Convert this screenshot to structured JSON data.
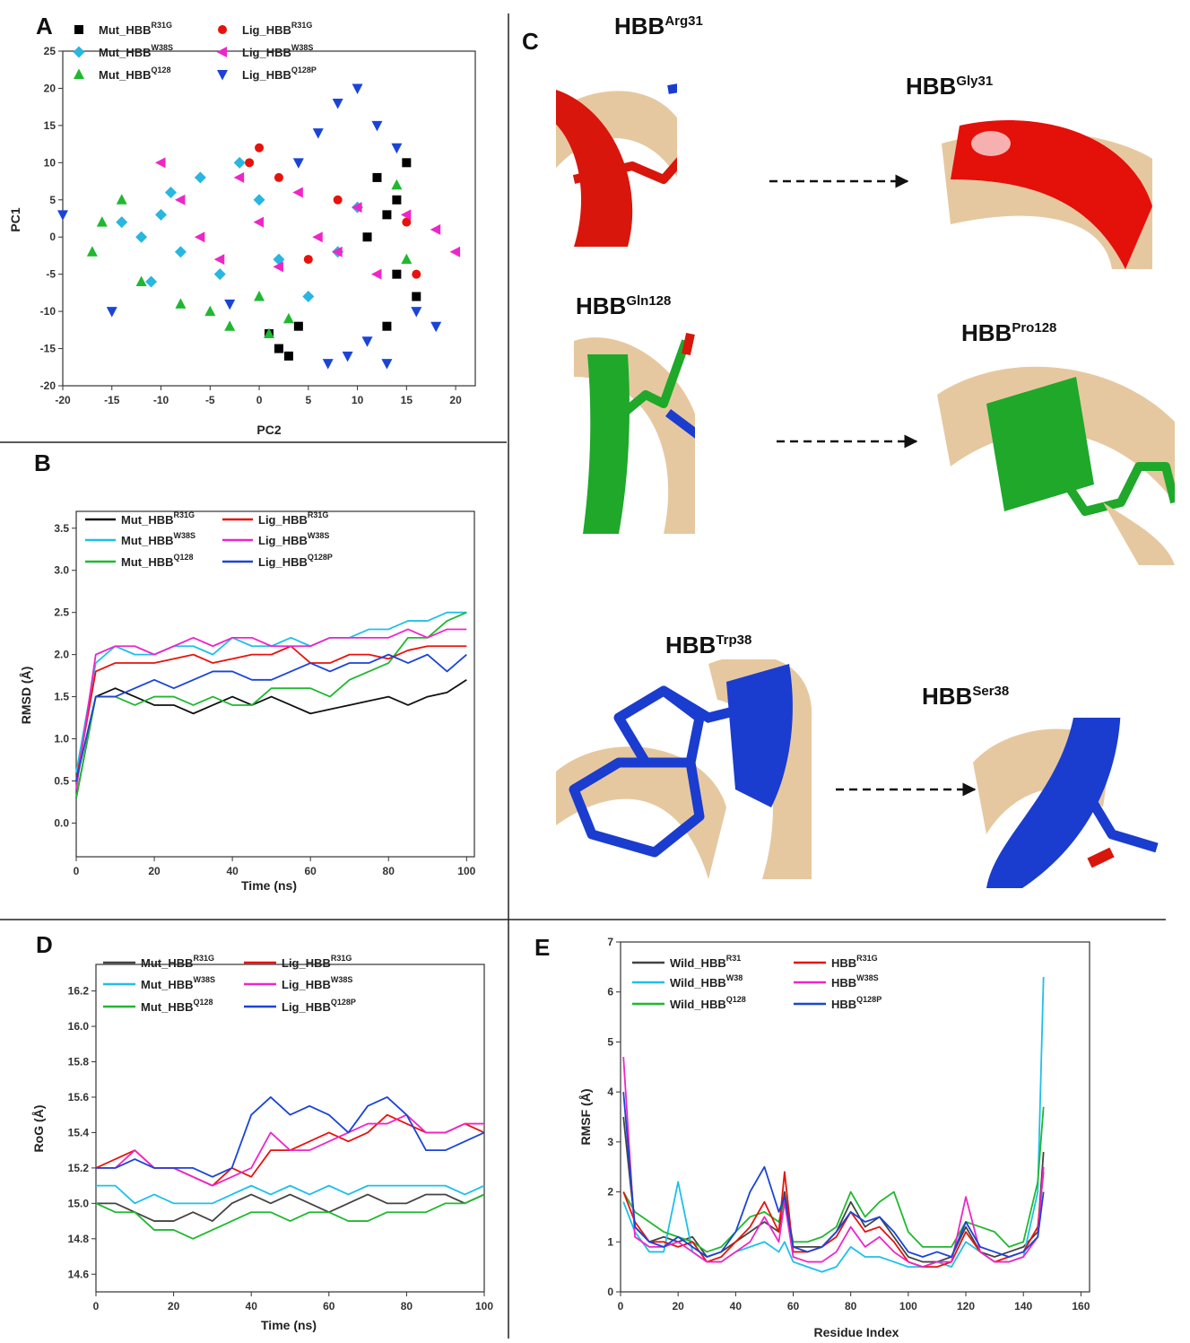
{
  "chart_data": [
    {
      "type": "scatter",
      "panel_label": "A",
      "x_label": "PC2",
      "y_label": "PC1",
      "xlim": [
        -20,
        22
      ],
      "ylim": [
        -20,
        25
      ],
      "xticks": [
        -20,
        -15,
        -10,
        -5,
        0,
        5,
        10,
        15,
        20
      ],
      "yticks": [
        -20,
        -15,
        -10,
        -5,
        0,
        5,
        10,
        15,
        20,
        25
      ],
      "series": [
        {
          "name": "Mut_HBB",
          "name_sup": "R31G",
          "color": "#000000",
          "marker": "square",
          "x": [
            12,
            14,
            15,
            13,
            16,
            2,
            3,
            1,
            4,
            13,
            11,
            14
          ],
          "values": [
            8,
            5,
            10,
            -12,
            -8,
            -15,
            -16,
            -13,
            -12,
            3,
            0,
            -5
          ]
        },
        {
          "name": "Mut_HBB",
          "name_sup": "W38S",
          "color": "#29b6e0",
          "marker": "diamond",
          "x": [
            -12,
            -10,
            -8,
            -14,
            -6,
            -4,
            -2,
            0,
            2,
            5,
            8,
            10,
            -11,
            -9
          ],
          "values": [
            0,
            3,
            -2,
            2,
            8,
            -5,
            10,
            5,
            -3,
            -8,
            -2,
            4,
            -6,
            6
          ]
        },
        {
          "name": "Mut_HBB",
          "name_sup": "Q128",
          "color": "#1fb830",
          "marker": "triangle-up",
          "x": [
            -16,
            -14,
            -17,
            -5,
            -3,
            0,
            3,
            1,
            14,
            15,
            -12,
            -8
          ],
          "values": [
            2,
            5,
            -2,
            -10,
            -12,
            -8,
            -11,
            -13,
            7,
            -3,
            -6,
            -9
          ]
        },
        {
          "name": "Lig_HBB",
          "name_sup": "R31G",
          "color": "#e8120c",
          "marker": "circle",
          "x": [
            0,
            -1,
            2,
            15,
            16,
            5,
            8
          ],
          "values": [
            12,
            10,
            8,
            2,
            -5,
            -3,
            5
          ]
        },
        {
          "name": "Lig_HBB",
          "name_sup": "W38S",
          "color": "#ee26c8",
          "marker": "triangle-left",
          "x": [
            -8,
            -6,
            -4,
            -2,
            0,
            2,
            4,
            6,
            8,
            10,
            12,
            15,
            18,
            20,
            -10
          ],
          "values": [
            5,
            0,
            -3,
            8,
            2,
            -4,
            6,
            0,
            -2,
            4,
            -5,
            3,
            1,
            -2,
            10
          ]
        },
        {
          "name": "Lig_HBB",
          "name_sup": "Q128P",
          "color": "#1a44d8",
          "marker": "triangle-down",
          "x": [
            -20,
            8,
            10,
            12,
            14,
            4,
            6,
            9,
            11,
            16,
            18,
            -15,
            -3,
            7,
            13
          ],
          "values": [
            3,
            18,
            20,
            15,
            12,
            10,
            14,
            -16,
            -14,
            -10,
            -12,
            -10,
            -9,
            -17,
            -17
          ]
        }
      ]
    },
    {
      "type": "line",
      "panel_label": "B",
      "x_label": "Time (ns)",
      "y_label": "RMSD (Å)",
      "xlim": [
        0,
        102
      ],
      "ylim": [
        -0.4,
        3.7
      ],
      "xticks": [
        0,
        20,
        40,
        60,
        80,
        100
      ],
      "yticks": [
        {
          "value": 0,
          "label": "0.0"
        },
        0.5,
        {
          "value": 1,
          "label": "1.0"
        },
        1.5,
        {
          "value": 2,
          "label": "2.0"
        },
        2.5,
        {
          "value": 3,
          "label": "3.0"
        },
        3.5
      ],
      "x": [
        0,
        5,
        10,
        15,
        20,
        25,
        30,
        35,
        40,
        45,
        50,
        55,
        60,
        65,
        70,
        75,
        80,
        85,
        90,
        95,
        100
      ],
      "series": [
        {
          "name": "Mut_HBB",
          "name_sup": "R31G",
          "color": "#111111",
          "values": [
            0.3,
            1.5,
            1.6,
            1.5,
            1.4,
            1.4,
            1.3,
            1.4,
            1.5,
            1.4,
            1.5,
            1.4,
            1.3,
            1.35,
            1.4,
            1.45,
            1.5,
            1.4,
            1.5,
            1.55,
            1.7
          ]
        },
        {
          "name": "Mut_HBB",
          "name_sup": "W38S",
          "color": "#1ec0e8",
          "values": [
            0.6,
            1.9,
            2.1,
            2.0,
            2.0,
            2.1,
            2.1,
            2.0,
            2.2,
            2.1,
            2.1,
            2.2,
            2.1,
            2.2,
            2.2,
            2.3,
            2.3,
            2.4,
            2.4,
            2.5,
            2.5
          ]
        },
        {
          "name": "Mut_HBB",
          "name_sup": "Q128",
          "color": "#1fb830",
          "values": [
            0.3,
            1.5,
            1.5,
            1.4,
            1.5,
            1.5,
            1.4,
            1.5,
            1.4,
            1.4,
            1.6,
            1.6,
            1.6,
            1.5,
            1.7,
            1.8,
            1.9,
            2.2,
            2.2,
            2.4,
            2.5
          ]
        },
        {
          "name": "Lig_HBB",
          "name_sup": "R31G",
          "color": "#e8120c",
          "values": [
            0.5,
            1.8,
            1.9,
            1.9,
            1.9,
            1.95,
            2.0,
            1.9,
            1.95,
            2.0,
            2.0,
            2.1,
            1.9,
            1.9,
            2.0,
            2.0,
            1.95,
            2.05,
            2.1,
            2.1,
            2.1
          ]
        },
        {
          "name": "Lig_HBB",
          "name_sup": "W38S",
          "color": "#ee26c8",
          "values": [
            0.4,
            2.0,
            2.1,
            2.1,
            2.0,
            2.1,
            2.2,
            2.1,
            2.2,
            2.2,
            2.1,
            2.1,
            2.1,
            2.2,
            2.2,
            2.2,
            2.2,
            2.3,
            2.2,
            2.3,
            2.3
          ]
        },
        {
          "name": "Lig_HBB",
          "name_sup": "Q128P",
          "color": "#1a44d8",
          "values": [
            0.5,
            1.5,
            1.5,
            1.6,
            1.7,
            1.6,
            1.7,
            1.8,
            1.8,
            1.7,
            1.7,
            1.8,
            1.9,
            1.8,
            1.9,
            1.9,
            2.0,
            1.9,
            2.0,
            1.8,
            2.0
          ]
        }
      ]
    },
    {
      "type": "line",
      "panel_label": "D",
      "x_label": "Time (ns)",
      "y_label": "RoG (Å)",
      "xlim": [
        0,
        100
      ],
      "ylim": [
        14.5,
        16.35
      ],
      "xticks": [
        0,
        20,
        40,
        60,
        80,
        100
      ],
      "yticks": [
        14.6,
        14.8,
        {
          "value": 15,
          "label": "15.0"
        },
        15.2,
        15.4,
        15.6,
        15.8,
        {
          "value": 16,
          "label": "16.0"
        },
        16.2
      ],
      "x": [
        0,
        5,
        10,
        15,
        20,
        25,
        30,
        35,
        40,
        45,
        50,
        55,
        60,
        65,
        70,
        75,
        80,
        85,
        90,
        95,
        100
      ],
      "series": [
        {
          "name": "Mut_HBB",
          "name_sup": "R31G",
          "color": "#444444",
          "values": [
            15.0,
            15.0,
            14.95,
            14.9,
            14.9,
            14.95,
            14.9,
            15.0,
            15.05,
            15.0,
            15.05,
            15.0,
            14.95,
            15.0,
            15.05,
            15.0,
            15.0,
            15.05,
            15.05,
            15.0,
            15.05
          ]
        },
        {
          "name": "Mut_HBB",
          "name_sup": "W38S",
          "color": "#1ec0e8",
          "values": [
            15.1,
            15.1,
            15.0,
            15.05,
            15.0,
            15.0,
            15.0,
            15.05,
            15.1,
            15.05,
            15.1,
            15.05,
            15.1,
            15.05,
            15.1,
            15.1,
            15.1,
            15.1,
            15.1,
            15.05,
            15.1
          ]
        },
        {
          "name": "Mut_HBB",
          "name_sup": "Q128",
          "color": "#1fb830",
          "values": [
            15.0,
            14.95,
            14.95,
            14.85,
            14.85,
            14.8,
            14.85,
            14.9,
            14.95,
            14.95,
            14.9,
            14.95,
            14.95,
            14.9,
            14.9,
            14.95,
            14.95,
            14.95,
            15.0,
            15.0,
            15.05
          ]
        },
        {
          "name": "Lig_HBB",
          "name_sup": "R31G",
          "color": "#e8120c",
          "values": [
            15.2,
            15.25,
            15.3,
            15.2,
            15.2,
            15.15,
            15.1,
            15.2,
            15.15,
            15.3,
            15.3,
            15.35,
            15.4,
            15.35,
            15.4,
            15.5,
            15.45,
            15.4,
            15.4,
            15.45,
            15.4
          ]
        },
        {
          "name": "Lig_HBB",
          "name_sup": "W38S",
          "color": "#ee26c8",
          "values": [
            15.2,
            15.2,
            15.3,
            15.2,
            15.2,
            15.15,
            15.1,
            15.15,
            15.2,
            15.4,
            15.3,
            15.3,
            15.35,
            15.4,
            15.45,
            15.45,
            15.5,
            15.4,
            15.4,
            15.45,
            15.45
          ]
        },
        {
          "name": "Lig_HBB",
          "name_sup": "Q128P",
          "color": "#1a44d8",
          "values": [
            15.2,
            15.2,
            15.25,
            15.2,
            15.2,
            15.2,
            15.15,
            15.2,
            15.5,
            15.6,
            15.5,
            15.55,
            15.5,
            15.4,
            15.55,
            15.6,
            15.5,
            15.3,
            15.3,
            15.35,
            15.4
          ]
        }
      ]
    },
    {
      "type": "line",
      "panel_label": "E",
      "x_label": "Residue Index",
      "y_label": "RMSF (Å)",
      "xlim": [
        0,
        163
      ],
      "ylim": [
        0,
        7
      ],
      "xticks": [
        0,
        20,
        40,
        60,
        80,
        100,
        120,
        140,
        160
      ],
      "yticks": [
        0,
        1,
        2,
        3,
        4,
        5,
        6,
        7
      ],
      "x": [
        1,
        5,
        10,
        15,
        20,
        25,
        30,
        35,
        40,
        45,
        50,
        55,
        57,
        60,
        65,
        70,
        75,
        80,
        85,
        90,
        95,
        100,
        105,
        110,
        115,
        120,
        125,
        130,
        135,
        140,
        145,
        147
      ],
      "series": [
        {
          "name": "Wild_HBB",
          "name_sup": "R31",
          "color": "#444444",
          "values": [
            3.5,
            1.3,
            1.0,
            1.1,
            1.0,
            1.1,
            0.7,
            0.8,
            1.0,
            1.2,
            1.4,
            1.2,
            2.0,
            0.9,
            0.9,
            0.9,
            1.2,
            1.8,
            1.3,
            1.5,
            1.1,
            0.7,
            0.6,
            0.6,
            0.7,
            1.3,
            0.8,
            0.7,
            0.8,
            0.9,
            1.2,
            2.8
          ]
        },
        {
          "name": "Wild_HBB",
          "name_sup": "W38",
          "color": "#1ec0e8",
          "values": [
            1.8,
            1.2,
            0.8,
            0.8,
            2.2,
            0.8,
            0.6,
            0.6,
            0.8,
            0.9,
            1.0,
            0.8,
            1.0,
            0.6,
            0.5,
            0.4,
            0.5,
            0.9,
            0.7,
            0.7,
            0.6,
            0.5,
            0.5,
            0.6,
            0.5,
            1.0,
            0.8,
            0.6,
            0.6,
            0.7,
            2.0,
            6.3
          ]
        },
        {
          "name": "Wild_HBB",
          "name_sup": "Q128",
          "color": "#1fb830",
          "values": [
            2.0,
            1.6,
            1.4,
            1.2,
            1.1,
            1.0,
            0.8,
            0.9,
            1.2,
            1.5,
            1.6,
            1.4,
            1.8,
            1.0,
            1.0,
            1.1,
            1.3,
            2.0,
            1.5,
            1.8,
            2.0,
            1.2,
            0.9,
            0.9,
            0.9,
            1.4,
            1.3,
            1.2,
            0.9,
            1.0,
            2.2,
            3.7
          ]
        },
        {
          "name": "HBB",
          "name_sup": "R31G",
          "color": "#e8120c",
          "values": [
            2.0,
            1.4,
            1.0,
            1.0,
            0.9,
            1.0,
            0.6,
            0.7,
            1.0,
            1.3,
            1.8,
            1.2,
            2.4,
            0.8,
            0.8,
            0.9,
            1.1,
            1.6,
            1.2,
            1.3,
            1.0,
            0.6,
            0.5,
            0.5,
            0.6,
            1.2,
            0.8,
            0.6,
            0.7,
            0.8,
            1.3,
            2.4
          ]
        },
        {
          "name": "HBB",
          "name_sup": "W38S",
          "color": "#ee26c8",
          "values": [
            4.7,
            1.1,
            0.9,
            0.9,
            1.0,
            0.8,
            0.6,
            0.6,
            0.8,
            1.0,
            1.5,
            1.0,
            1.8,
            0.7,
            0.6,
            0.6,
            0.8,
            1.3,
            0.9,
            1.1,
            0.8,
            0.6,
            0.5,
            0.6,
            0.6,
            1.9,
            0.8,
            0.6,
            0.6,
            0.7,
            1.1,
            2.5
          ]
        },
        {
          "name": "HBB",
          "name_sup": "Q128P",
          "color": "#1a44d8",
          "values": [
            4.0,
            1.3,
            1.0,
            0.9,
            1.1,
            0.9,
            0.7,
            0.8,
            1.2,
            2.0,
            2.5,
            1.6,
            1.9,
            0.9,
            0.8,
            0.9,
            1.2,
            1.6,
            1.4,
            1.5,
            1.2,
            0.8,
            0.7,
            0.8,
            0.7,
            1.4,
            0.9,
            0.8,
            0.7,
            0.8,
            1.1,
            2.0
          ]
        }
      ]
    }
  ],
  "panel_c": {
    "panel_label": "C",
    "structures": [
      {
        "label": "HBB",
        "sup": "Arg31"
      },
      {
        "label": "HBB",
        "sup": "Gly31"
      },
      {
        "label": "HBB",
        "sup": "Gln128"
      },
      {
        "label": "HBB",
        "sup": "Pro128"
      },
      {
        "label": "HBB",
        "sup": "Trp38"
      },
      {
        "label": "HBB",
        "sup": "Ser38"
      }
    ]
  }
}
